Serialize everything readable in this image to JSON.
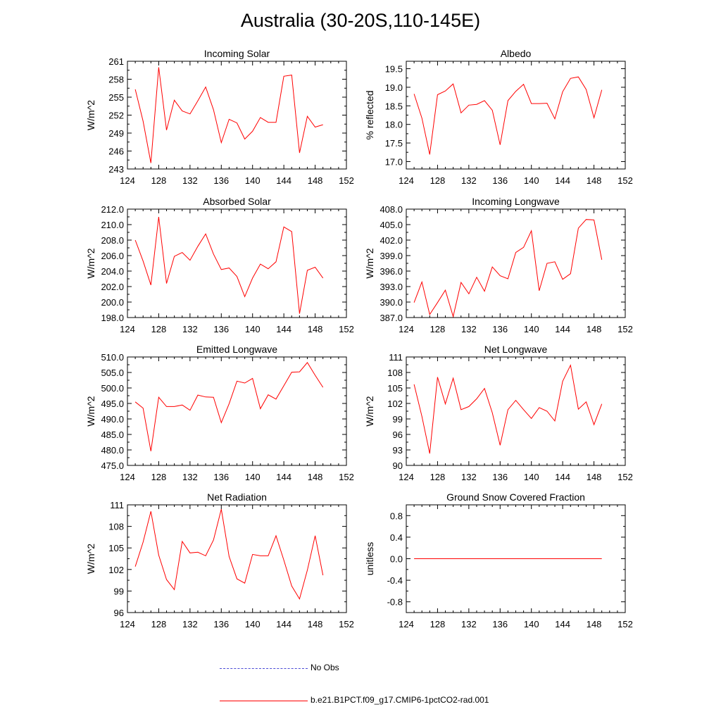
{
  "title": "Australia (30-20S,110-145E)",
  "legend": [
    {
      "label": "No Obs",
      "color": "#4a4ad6",
      "dash": true
    },
    {
      "label": "b.e21.B1PCT.f09_g17.CMIP6-1pctCO2-rad.001",
      "color": "#ff0000",
      "dash": false
    }
  ],
  "chart_data": [
    {
      "type": "line",
      "title": "Incoming Solar",
      "xlabel": "",
      "ylabel": "W/m^2",
      "xlim": [
        124,
        152
      ],
      "ylim": [
        243,
        261
      ],
      "xticks": [
        124,
        128,
        132,
        136,
        140,
        144,
        148,
        152
      ],
      "yticks": [
        243,
        246,
        249,
        252,
        255,
        258,
        261
      ],
      "ytick_labels": [
        "243",
        "246",
        "249",
        "252",
        "255",
        "258",
        "261"
      ],
      "x": [
        125,
        126,
        127,
        128,
        129,
        130,
        131,
        132,
        133,
        134,
        135,
        136,
        137,
        138,
        139,
        140,
        141,
        142,
        143,
        144,
        145,
        146,
        147,
        148,
        149
      ],
      "series": [
        {
          "color": "#ff0000",
          "values": [
            256.3,
            251.0,
            244.0,
            260.0,
            249.5,
            254.5,
            252.7,
            252.2,
            254.4,
            256.7,
            252.9,
            247.4,
            251.3,
            250.7,
            248.0,
            249.3,
            251.6,
            250.8,
            250.8,
            258.5,
            258.7,
            245.7,
            251.8,
            250.0,
            250.4
          ]
        }
      ]
    },
    {
      "type": "line",
      "title": "Albedo",
      "xlabel": "",
      "ylabel": "% reflected",
      "xlim": [
        124,
        152
      ],
      "ylim": [
        16.8,
        19.7
      ],
      "xticks": [
        124,
        128,
        132,
        136,
        140,
        144,
        148,
        152
      ],
      "yticks": [
        17.0,
        17.5,
        18.0,
        18.5,
        19.0,
        19.5
      ],
      "ytick_labels": [
        "17.0",
        "17.5",
        "18.0",
        "18.5",
        "19.0",
        "19.5"
      ],
      "x": [
        125,
        126,
        127,
        128,
        129,
        130,
        131,
        132,
        133,
        134,
        135,
        136,
        137,
        138,
        139,
        140,
        141,
        142,
        143,
        144,
        145,
        146,
        147,
        148,
        149
      ],
      "series": [
        {
          "color": "#ff0000",
          "values": [
            18.82,
            18.17,
            17.19,
            18.8,
            18.9,
            19.09,
            18.31,
            18.52,
            18.54,
            18.64,
            18.38,
            17.45,
            18.64,
            18.89,
            19.08,
            18.56,
            18.56,
            18.57,
            18.15,
            18.88,
            19.24,
            19.28,
            18.94,
            18.18,
            18.93
          ]
        }
      ]
    },
    {
      "type": "line",
      "title": "Absorbed Solar",
      "xlabel": "",
      "ylabel": "W/m^2",
      "xlim": [
        124,
        152
      ],
      "ylim": [
        198.0,
        212.0
      ],
      "xticks": [
        124,
        128,
        132,
        136,
        140,
        144,
        148,
        152
      ],
      "yticks": [
        198.0,
        200.0,
        202.0,
        204.0,
        206.0,
        208.0,
        210.0,
        212.0
      ],
      "ytick_labels": [
        "198.0",
        "200.0",
        "202.0",
        "204.0",
        "206.0",
        "208.0",
        "210.0",
        "212.0"
      ],
      "x": [
        125,
        126,
        127,
        128,
        129,
        130,
        131,
        132,
        133,
        134,
        135,
        136,
        137,
        138,
        139,
        140,
        141,
        142,
        143,
        144,
        145,
        146,
        147,
        148,
        149
      ],
      "series": [
        {
          "color": "#ff0000",
          "values": [
            208.0,
            205.3,
            202.2,
            211.0,
            202.4,
            205.9,
            206.4,
            205.4,
            207.2,
            208.8,
            206.2,
            204.2,
            204.4,
            203.3,
            200.7,
            203.1,
            204.9,
            204.3,
            205.2,
            209.7,
            209.1,
            198.5,
            204.1,
            204.5,
            203.1
          ]
        }
      ]
    },
    {
      "type": "line",
      "title": "Incoming Longwave",
      "xlabel": "",
      "ylabel": "W/m^2",
      "xlim": [
        124,
        152
      ],
      "ylim": [
        387.0,
        408.0
      ],
      "xticks": [
        124,
        128,
        132,
        136,
        140,
        144,
        148,
        152
      ],
      "yticks": [
        387.0,
        390.0,
        393.0,
        396.0,
        399.0,
        402.0,
        405.0,
        408.0
      ],
      "ytick_labels": [
        "387.0",
        "390.0",
        "393.0",
        "396.0",
        "399.0",
        "402.0",
        "405.0",
        "408.0"
      ],
      "x": [
        125,
        126,
        127,
        128,
        129,
        130,
        131,
        132,
        133,
        134,
        135,
        136,
        137,
        138,
        139,
        140,
        141,
        142,
        143,
        144,
        145,
        146,
        147,
        148,
        149
      ],
      "series": [
        {
          "color": "#ff0000",
          "values": [
            389.9,
            393.9,
            387.6,
            389.9,
            392.3,
            387.2,
            393.8,
            391.6,
            394.8,
            392.1,
            396.8,
            395.1,
            394.5,
            399.6,
            400.6,
            403.8,
            392.2,
            397.5,
            397.8,
            394.4,
            395.5,
            404.3,
            406.0,
            405.9,
            398.2
          ]
        }
      ]
    },
    {
      "type": "line",
      "title": "Emitted Longwave",
      "xlabel": "",
      "ylabel": "W/m^2",
      "xlim": [
        124,
        152
      ],
      "ylim": [
        475.0,
        510.0
      ],
      "xticks": [
        124,
        128,
        132,
        136,
        140,
        144,
        148,
        152
      ],
      "yticks": [
        475.0,
        480.0,
        485.0,
        490.0,
        495.0,
        500.0,
        505.0,
        510.0
      ],
      "ytick_labels": [
        "475.0",
        "480.0",
        "485.0",
        "490.0",
        "495.0",
        "500.0",
        "505.0",
        "510.0"
      ],
      "x": [
        125,
        126,
        127,
        128,
        129,
        130,
        131,
        132,
        133,
        134,
        135,
        136,
        137,
        138,
        139,
        140,
        141,
        142,
        143,
        144,
        145,
        146,
        147,
        148,
        149
      ],
      "series": [
        {
          "color": "#ff0000",
          "values": [
            495.5,
            493.5,
            479.6,
            497.0,
            494.0,
            494.0,
            494.5,
            492.8,
            497.7,
            497.1,
            497.0,
            488.8,
            494.9,
            502.2,
            501.6,
            503.1,
            493.3,
            497.8,
            496.4,
            500.7,
            505.1,
            505.2,
            508.2,
            504.1,
            500.2
          ]
        }
      ]
    },
    {
      "type": "line",
      "title": "Net Longwave",
      "xlabel": "",
      "ylabel": "W/m^2",
      "xlim": [
        124,
        152
      ],
      "ylim": [
        90,
        111
      ],
      "xticks": [
        124,
        128,
        132,
        136,
        140,
        144,
        148,
        152
      ],
      "yticks": [
        90,
        93,
        96,
        99,
        102,
        105,
        108,
        111
      ],
      "ytick_labels": [
        "90",
        "93",
        "96",
        "99",
        "102",
        "105",
        "108",
        "111"
      ],
      "x": [
        125,
        126,
        127,
        128,
        129,
        130,
        131,
        132,
        133,
        134,
        135,
        136,
        137,
        138,
        139,
        140,
        141,
        142,
        143,
        144,
        145,
        146,
        147,
        148,
        149
      ],
      "series": [
        {
          "color": "#ff0000",
          "values": [
            105.7,
            99.5,
            92.3,
            107.1,
            101.9,
            106.9,
            100.8,
            101.4,
            102.9,
            104.9,
            100.2,
            93.9,
            100.8,
            102.6,
            100.8,
            99.1,
            101.2,
            100.5,
            98.6,
            106.3,
            109.4,
            100.9,
            102.3,
            97.9,
            101.9
          ]
        }
      ]
    },
    {
      "type": "line",
      "title": "Net Radiation",
      "xlabel": "",
      "ylabel": "W/m^2",
      "xlim": [
        124,
        152
      ],
      "ylim": [
        96,
        111
      ],
      "xticks": [
        124,
        128,
        132,
        136,
        140,
        144,
        148,
        152
      ],
      "yticks": [
        96,
        99,
        102,
        105,
        108,
        111
      ],
      "ytick_labels": [
        "96",
        "99",
        "102",
        "105",
        "108",
        "111"
      ],
      "x": [
        125,
        126,
        127,
        128,
        129,
        130,
        131,
        132,
        133,
        134,
        135,
        136,
        137,
        138,
        139,
        140,
        141,
        142,
        143,
        144,
        145,
        146,
        147,
        148,
        149
      ],
      "series": [
        {
          "color": "#ff0000",
          "values": [
            102.4,
            105.8,
            110.1,
            104.0,
            100.6,
            99.2,
            105.9,
            104.3,
            104.4,
            103.9,
            106.1,
            110.4,
            103.8,
            100.7,
            100.1,
            104.1,
            103.9,
            103.9,
            106.7,
            103.3,
            99.7,
            97.9,
            101.9,
            106.7,
            101.2
          ]
        }
      ]
    },
    {
      "type": "line",
      "title": "Ground Snow Covered Fraction",
      "xlabel": "",
      "ylabel": "unitless",
      "xlim": [
        124,
        152
      ],
      "ylim": [
        -1.0,
        1.0
      ],
      "xticks": [
        124,
        128,
        132,
        136,
        140,
        144,
        148,
        152
      ],
      "yticks": [
        -0.8,
        -0.4,
        0.0,
        0.4,
        0.8
      ],
      "ytick_labels": [
        "-0.8",
        "-0.4",
        "0.0",
        "0.4",
        "0.8"
      ],
      "x": [
        125,
        126,
        127,
        128,
        129,
        130,
        131,
        132,
        133,
        134,
        135,
        136,
        137,
        138,
        139,
        140,
        141,
        142,
        143,
        144,
        145,
        146,
        147,
        148,
        149
      ],
      "series": [
        {
          "color": "#ff0000",
          "values": [
            0,
            0,
            0,
            0,
            0,
            0,
            0,
            0,
            0,
            0,
            0,
            0,
            0,
            0,
            0,
            0,
            0,
            0,
            0,
            0,
            0,
            0,
            0,
            0,
            0
          ]
        }
      ]
    }
  ]
}
